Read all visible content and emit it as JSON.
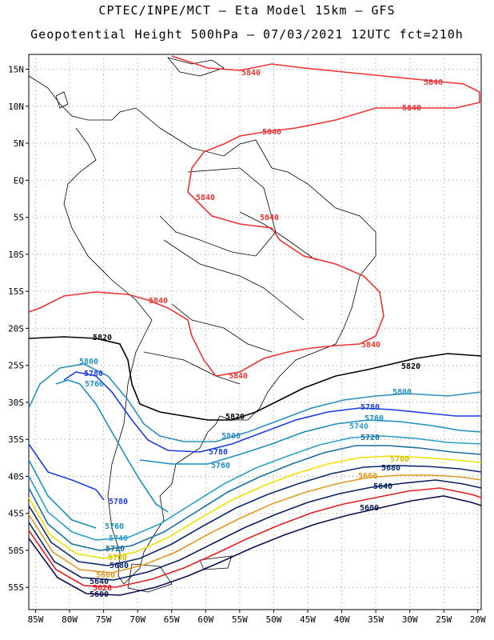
{
  "header": {
    "line1": "CPTEC/INPE/MCT –  Eta Model 15km – GFS",
    "line2": "Geopotential Height 500hPa – 07/03/2021 12UTC fct=210h"
  },
  "map": {
    "lon_range": [
      -86,
      -19.5
    ],
    "lat_range": [
      -58,
      17
    ],
    "lat_ticks": [
      "15N",
      "10N",
      "5N",
      "EQ",
      "5S",
      "10S",
      "15S",
      "20S",
      "25S",
      "30S",
      "35S",
      "40S",
      "45S",
      "50S",
      "55S"
    ],
    "lat_values": [
      15,
      10,
      5,
      0,
      -5,
      -10,
      -15,
      -20,
      -25,
      -30,
      -35,
      -40,
      -45,
      -50,
      -55
    ],
    "lon_ticks": [
      "85W",
      "80W",
      "75W",
      "70W",
      "65W",
      "60W",
      "55W",
      "50W",
      "45W",
      "40W",
      "35W",
      "30W",
      "25W",
      "20W"
    ],
    "lon_values": [
      -85,
      -80,
      -75,
      -70,
      -65,
      -60,
      -55,
      -50,
      -45,
      -40,
      -35,
      -30,
      -25,
      -20
    ],
    "grid": "dotted"
  },
  "contours": [
    {
      "level": "5840",
      "color": "#ee3333"
    },
    {
      "level": "5820",
      "color": "#000000"
    },
    {
      "level": "5800",
      "color": "#2a8fbf"
    },
    {
      "level": "5780",
      "color": "#1a3fe0"
    },
    {
      "level": "5760",
      "color": "#1a8fbf"
    },
    {
      "level": "5740",
      "color": "#2aa0c8"
    },
    {
      "level": "5720",
      "color": "#1a6fa0"
    },
    {
      "level": "5700",
      "color": "#f0e000"
    },
    {
      "level": "5680",
      "color": "#0a2a70"
    },
    {
      "level": "5660",
      "color": "#e09a20"
    },
    {
      "level": "5640",
      "color": "#0a2060"
    },
    {
      "level": "5620",
      "color": "#e02020"
    },
    {
      "level": "5600",
      "color": "#0a1050"
    }
  ]
}
